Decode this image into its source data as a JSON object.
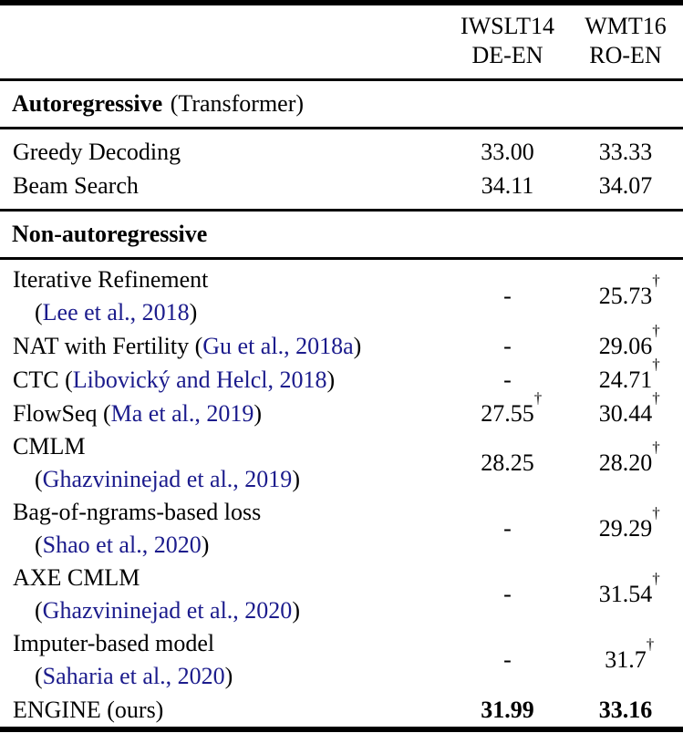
{
  "colors": {
    "citation": "#1b1b8c",
    "text": "#000000",
    "background": "#ffffff"
  },
  "punct": {
    "open": "(",
    "close": ")"
  },
  "header": {
    "col_iwslt": {
      "line1": "IWSLT14",
      "line2": "DE-EN"
    },
    "col_wmt": {
      "line1": "WMT16",
      "line2": "RO-EN"
    }
  },
  "sections": [
    {
      "title_bold": "Autoregressive",
      "title_normal": "(Transformer)",
      "rows": [
        {
          "label": "Greedy Decoding",
          "de": "33.00",
          "ro": "33.33"
        },
        {
          "label": "Beam Search",
          "de": "34.11",
          "ro": "34.07"
        }
      ]
    },
    {
      "title_bold": "Non-autoregressive",
      "title_normal": "",
      "rows": [
        {
          "label": "Iterative Refinement",
          "cite": "Lee et al., 2018",
          "de": "-",
          "ro": "25.73",
          "ro_sup": "†"
        },
        {
          "label": "NAT with Fertility",
          "cite": "Gu et al., 2018a",
          "de": "-",
          "ro": "29.06",
          "ro_sup": "†"
        },
        {
          "label": "CTC",
          "cite": "Libovický and Helcl, 2018",
          "de": "-",
          "ro": "24.71",
          "ro_sup": "†"
        },
        {
          "label": "FlowSeq",
          "cite": "Ma et al., 2019",
          "de": "27.55",
          "de_sup": "†",
          "ro": "30.44",
          "ro_sup": "†"
        },
        {
          "label": "CMLM",
          "cite": "Ghazvininejad et al., 2019",
          "de": "28.25",
          "ro": "28.20",
          "ro_sup": "†"
        },
        {
          "label": "Bag-of-ngrams-based loss",
          "cite": "Shao et al., 2020",
          "de": "-",
          "ro": "29.29",
          "ro_sup": "†"
        },
        {
          "label": "AXE CMLM",
          "cite": "Ghazvininejad et al., 2020",
          "de": "-",
          "ro": "31.54",
          "ro_sup": "†"
        },
        {
          "label": "Imputer-based model",
          "cite": "Saharia et al., 2020",
          "de": "-",
          "ro": "31.7",
          "ro_sup": "†"
        },
        {
          "label": "ENGINE (ours)",
          "de": "31.99",
          "ro": "33.16"
        }
      ]
    }
  ]
}
